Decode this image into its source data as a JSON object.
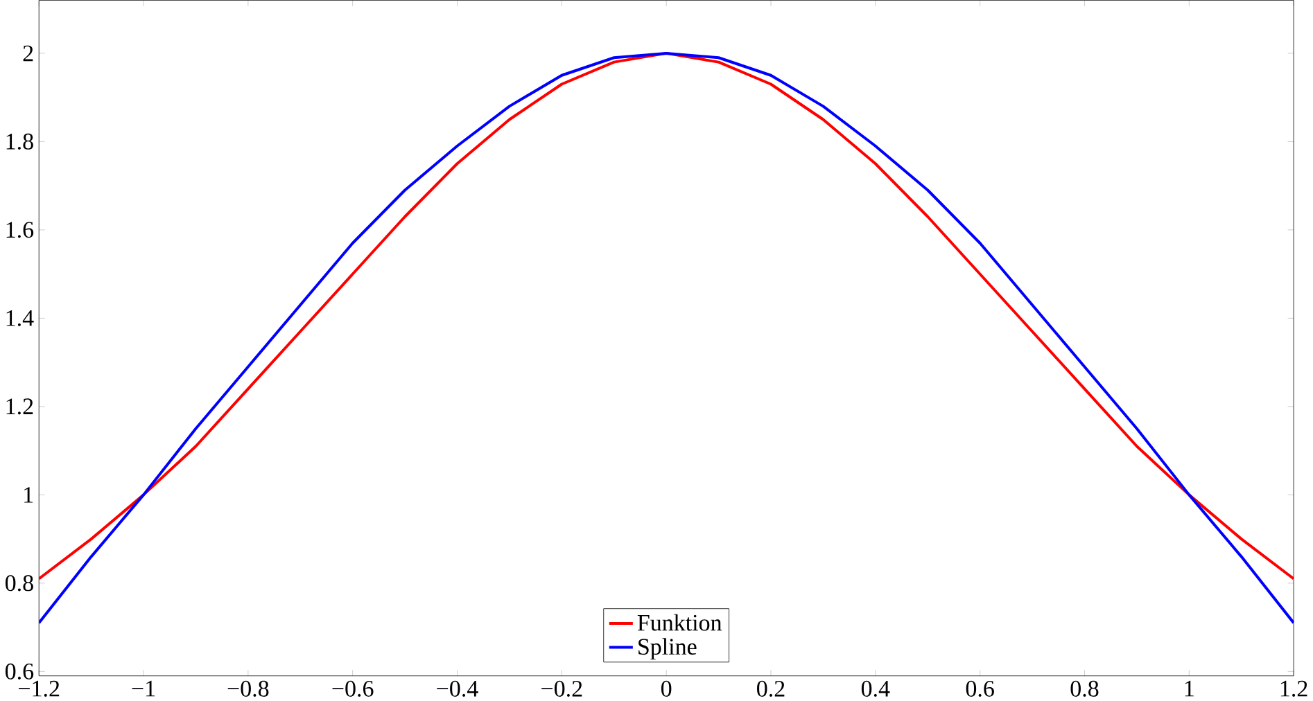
{
  "chart_data": {
    "type": "line",
    "x": [
      -1.2,
      -1.1,
      -1.0,
      -0.9,
      -0.8,
      -0.7,
      -0.6,
      -0.5,
      -0.4,
      -0.3,
      -0.2,
      -0.1,
      0,
      0.1,
      0.2,
      0.3,
      0.4,
      0.5,
      0.6,
      0.7,
      0.8,
      0.9,
      1.0,
      1.1,
      1.2
    ],
    "series": [
      {
        "name": "Funktion",
        "color": "#ff0000",
        "values": [
          0.81,
          0.9,
          1.0,
          1.11,
          1.24,
          1.37,
          1.5,
          1.63,
          1.75,
          1.85,
          1.93,
          1.98,
          2.0,
          1.98,
          1.93,
          1.85,
          1.75,
          1.63,
          1.5,
          1.37,
          1.24,
          1.11,
          1.0,
          0.9,
          0.81
        ]
      },
      {
        "name": "Spline",
        "color": "#0000ff",
        "values": [
          0.71,
          0.86,
          1.0,
          1.15,
          1.29,
          1.43,
          1.57,
          1.69,
          1.79,
          1.88,
          1.95,
          1.99,
          2.0,
          1.99,
          1.95,
          1.88,
          1.79,
          1.69,
          1.57,
          1.43,
          1.29,
          1.15,
          1.0,
          0.86,
          0.71
        ]
      }
    ],
    "xlim": [
      -1.2,
      1.2
    ],
    "ylim": [
      0.59,
      2.12
    ],
    "xticks": [
      {
        "value": -1.2,
        "label": "−1.2"
      },
      {
        "value": -1,
        "label": "−1"
      },
      {
        "value": -0.8,
        "label": "−0.8"
      },
      {
        "value": -0.6,
        "label": "−0.6"
      },
      {
        "value": -0.4,
        "label": "−0.4"
      },
      {
        "value": -0.2,
        "label": "−0.2"
      },
      0,
      0.2,
      0.4,
      0.6,
      0.8,
      1,
      1.2
    ],
    "yticks": [
      0.6,
      0.8,
      1,
      1.2,
      1.4,
      1.6,
      1.8,
      2
    ],
    "legend": "bottom",
    "marker": "none",
    "line_style": "solid",
    "grid": false
  }
}
